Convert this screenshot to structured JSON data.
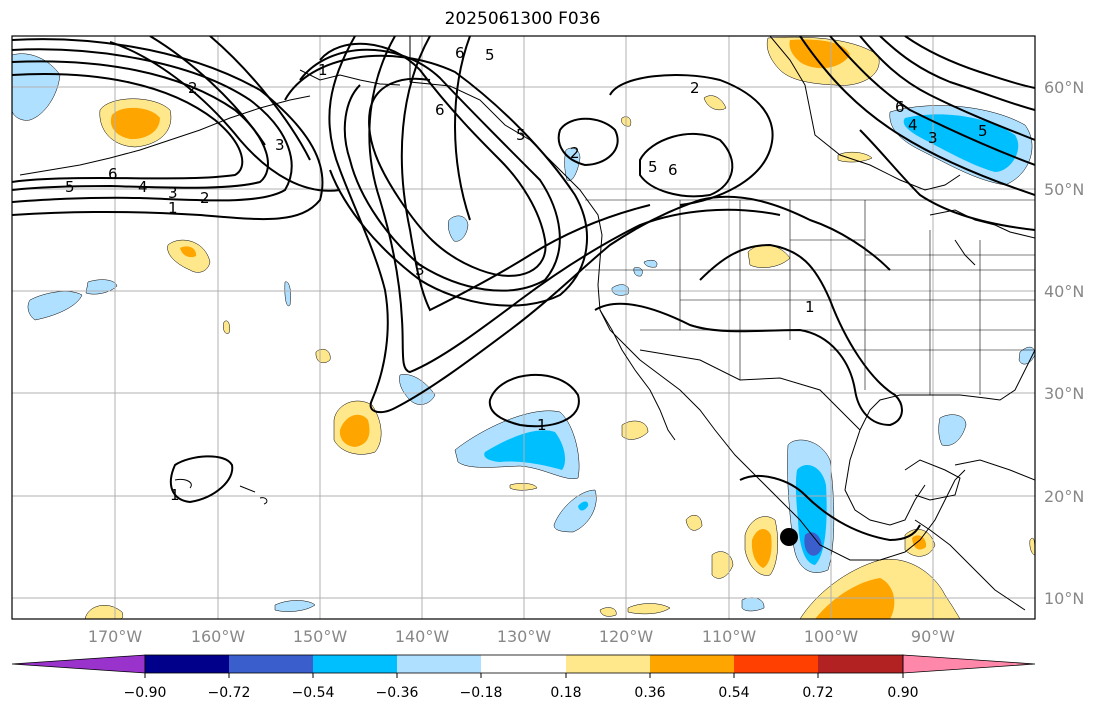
{
  "title": "2025061300 F036",
  "lon_ticks": [
    "170°W",
    "160°W",
    "150°W",
    "140°W",
    "130°W",
    "120°W",
    "110°W",
    "100°W",
    "90°W"
  ],
  "lat_ticks": [
    "60°N",
    "50°N",
    "40°N",
    "30°N",
    "20°N",
    "10°N"
  ],
  "colorbar": {
    "colors": [
      "#9933cc",
      "#00008b",
      "#3a5fcd",
      "#00bfff",
      "#b0e0ff",
      "#ffffff",
      "#ffe88c",
      "#ffa500",
      "#ff4000",
      "#b22222",
      "#ff88aa"
    ],
    "tick_labels": [
      "−0.90",
      "−0.72",
      "−0.54",
      "−0.36",
      "−0.18",
      "0.18",
      "0.36",
      "0.54",
      "0.72",
      "0.90"
    ]
  },
  "contour_labels": [
    "6",
    "5",
    "6",
    "2",
    "2",
    "6",
    "5",
    "6",
    "5",
    "4",
    "3",
    "1",
    "2",
    "6",
    "4",
    "3",
    "5",
    "3",
    "2",
    "1",
    "1",
    "1",
    "1",
    "3",
    "5"
  ],
  "point_marker": {
    "name": "black-dot",
    "lon": -104,
    "lat": 16
  }
}
